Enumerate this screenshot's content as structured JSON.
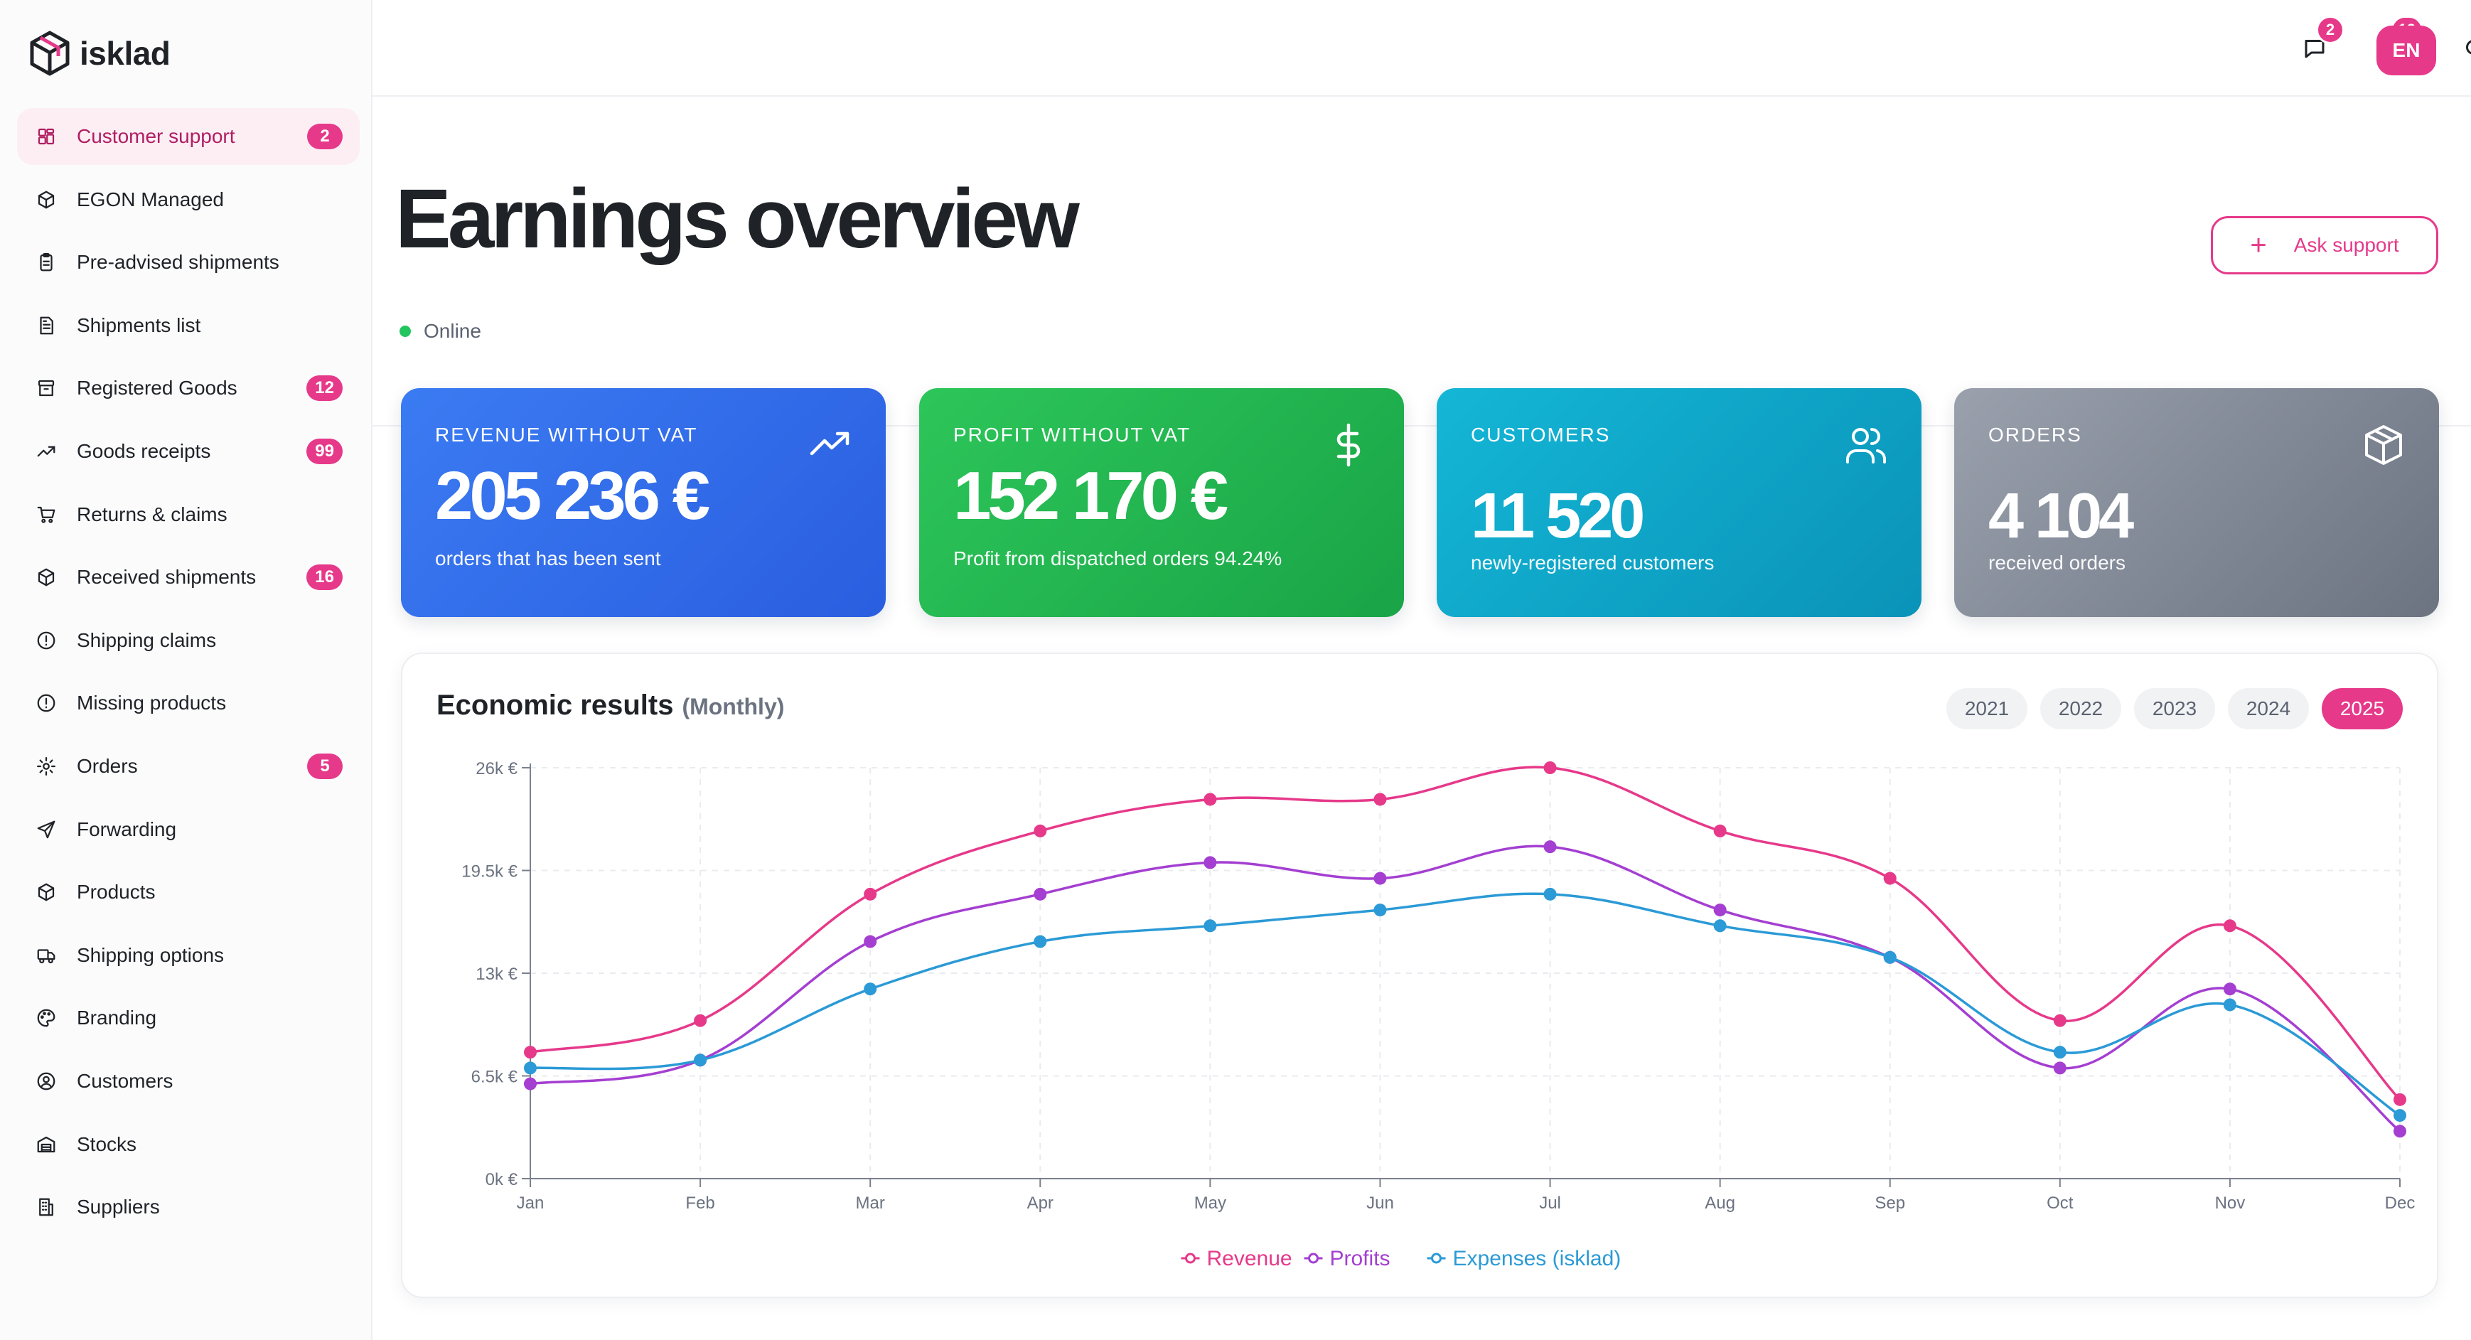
{
  "app": {
    "name": "isklad"
  },
  "colors": {
    "accent": "#e6398a",
    "revenue": "#e6398a",
    "profits": "#a43fd1",
    "expenses": "#2b9ad6"
  },
  "sidebar": {
    "items": [
      {
        "label": "Customer support",
        "icon": "grid-icon",
        "badge": "2",
        "active": true
      },
      {
        "label": "EGON Managed",
        "icon": "box-icon"
      },
      {
        "label": "Pre-advised shipments",
        "icon": "clipboard-icon"
      },
      {
        "label": "Shipments list",
        "icon": "document-icon",
        "narrow": true
      },
      {
        "label": "Registered Goods",
        "icon": "archive-icon",
        "badge": "12"
      },
      {
        "label": "Goods receipts",
        "icon": "trend-icon",
        "badge": "99"
      },
      {
        "label": "Returns & claims",
        "icon": "cart-icon"
      },
      {
        "label": "Received shipments",
        "icon": "box-icon",
        "badge": "16"
      },
      {
        "label": "Shipping claims",
        "icon": "alert-icon"
      },
      {
        "label": "Missing products",
        "icon": "alert-icon"
      },
      {
        "label": "Orders",
        "icon": "gear-icon",
        "badge": "5",
        "tiny": true
      },
      {
        "label": "Forwarding",
        "icon": "send-icon"
      },
      {
        "label": "Products",
        "icon": "box-icon"
      },
      {
        "label": "Shipping options",
        "icon": "truck-icon"
      },
      {
        "label": "Branding",
        "icon": "palette-icon"
      },
      {
        "label": "Customers",
        "icon": "user-circle-icon"
      },
      {
        "label": "Stocks",
        "icon": "warehouse-icon"
      },
      {
        "label": "Suppliers",
        "icon": "building-icon"
      }
    ]
  },
  "topbar": {
    "messages_badge": "2",
    "notifications_badge": "13",
    "language": "EN"
  },
  "main": {
    "title": "Earnings overview",
    "ask_support_label": "Ask support",
    "status": "Online"
  },
  "cards": {
    "revenue": {
      "label": "REVENUE WITHOUT VAT",
      "value": "205 236 €",
      "sub": "orders that has been sent"
    },
    "profit": {
      "label": "PROFIT WITHOUT VAT",
      "value": "152 170 €",
      "sub": "Profit from dispatched orders 94.24%"
    },
    "customers": {
      "label": "CUSTOMERS",
      "value": "11 520",
      "sub": "newly-registered customers"
    },
    "orders": {
      "label": "ORDERS",
      "value": "4 104",
      "sub": "received orders"
    }
  },
  "panel": {
    "title": "Economic results",
    "subtitle": "(Monthly)",
    "years": [
      "2021",
      "2022",
      "2023",
      "2024",
      "2025"
    ],
    "active_year": "2025"
  },
  "chart_data": {
    "type": "line",
    "categories": [
      "Jan",
      "Feb",
      "Mar",
      "Apr",
      "May",
      "Jun",
      "Jul",
      "Aug",
      "Sep",
      "Oct",
      "Nov",
      "Dec"
    ],
    "series": [
      {
        "name": "Revenue",
        "color": "#e6398a",
        "values": [
          8000,
          10000,
          18000,
          22000,
          24000,
          24000,
          26000,
          22000,
          19000,
          10000,
          16000,
          5000
        ]
      },
      {
        "name": "Profits",
        "color": "#a43fd1",
        "values": [
          6000,
          7500,
          15000,
          18000,
          20000,
          19000,
          21000,
          17000,
          14000,
          7000,
          12000,
          3000
        ]
      },
      {
        "name": "Expenses (isklad)",
        "color": "#2b9ad6",
        "values": [
          7000,
          7500,
          12000,
          15000,
          16000,
          17000,
          18000,
          16000,
          14000,
          8000,
          11000,
          4000
        ]
      }
    ],
    "y_ticks": [
      {
        "value": 0,
        "label": "0k €"
      },
      {
        "value": 6500,
        "label": "6.5k €"
      },
      {
        "value": 13000,
        "label": "13k €"
      },
      {
        "value": 19500,
        "label": "19.5k €"
      },
      {
        "value": 26000,
        "label": "26k €"
      }
    ],
    "ylim": [
      0,
      26000
    ],
    "grid": true,
    "legend": "bottom-center"
  }
}
